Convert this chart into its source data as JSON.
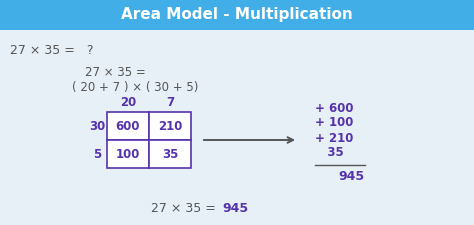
{
  "title": "Area Model - Multiplication",
  "title_bg": "#42aee8",
  "title_color": "#ffffff",
  "bg_color": "#e8f0f7",
  "problem_text": "27 × 35 =   ?",
  "expand_line1": "27 × 35 =",
  "expand_line2": "( 20 + 7 ) × ( 30 + 5)",
  "col_headers": [
    "20",
    "7"
  ],
  "row_headers": [
    "30",
    "5"
  ],
  "grid_values": [
    [
      "600",
      "210"
    ],
    [
      "100",
      "35"
    ]
  ],
  "purple_color": "#5533aa",
  "dark_color": "#555555",
  "grid_box_color": "#ffffff",
  "grid_border_color": "#5533aa",
  "addition_lines": [
    "+ 600",
    "+ 100",
    "+ 210",
    "   35"
  ],
  "result": "945",
  "final_text": "27 × 35 = ",
  "final_answer": "945"
}
